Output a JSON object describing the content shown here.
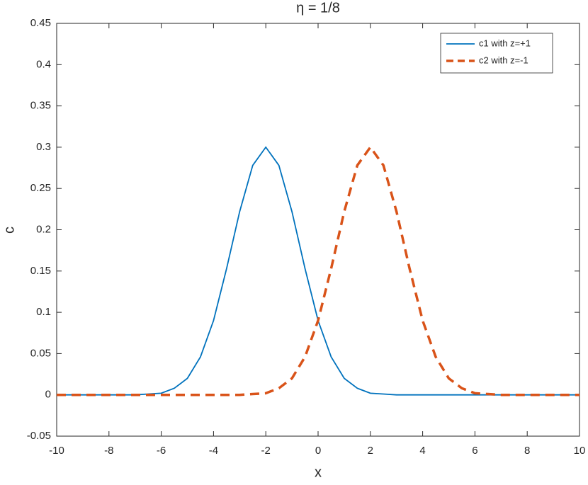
{
  "chart_data": {
    "type": "line",
    "title": "η = 1/8",
    "xlabel": "x",
    "ylabel": "c",
    "x": [
      -10,
      -9.5,
      -9,
      -8.5,
      -8,
      -7.5,
      -7,
      -6.5,
      -6,
      -5.5,
      -5,
      -4.5,
      -4,
      -3.5,
      -3,
      -2.5,
      -2,
      -1.5,
      -1,
      -0.5,
      0,
      0.5,
      1,
      1.5,
      2,
      2.5,
      3,
      3.5,
      4,
      4.5,
      5,
      5.5,
      6,
      6.5,
      7,
      7.5,
      8,
      8.5,
      9,
      9.5,
      10
    ],
    "series": [
      {
        "name": "c1 with z=+1",
        "color": "#0072bd",
        "dash": false,
        "values": [
          0,
          0,
          0,
          0,
          0,
          0,
          0,
          0.001,
          0.002,
          0.008,
          0.02,
          0.046,
          0.09,
          0.153,
          0.222,
          0.278,
          0.3,
          0.278,
          0.222,
          0.153,
          0.09,
          0.046,
          0.02,
          0.008,
          0.002,
          0.001,
          0,
          0,
          0,
          0,
          0,
          0,
          0,
          0,
          0,
          0,
          0,
          0,
          0,
          0,
          0
        ]
      },
      {
        "name": "c2 with z=-1",
        "color": "#d95319",
        "dash": true,
        "values": [
          0,
          0,
          0,
          0,
          0,
          0,
          0,
          0,
          0,
          0,
          0,
          0,
          0,
          0,
          0,
          0.001,
          0.002,
          0.008,
          0.02,
          0.046,
          0.09,
          0.153,
          0.222,
          0.278,
          0.3,
          0.278,
          0.222,
          0.153,
          0.09,
          0.046,
          0.02,
          0.008,
          0.002,
          0.001,
          0,
          0,
          0,
          0,
          0,
          0,
          0
        ]
      }
    ],
    "xlim": [
      -10,
      10
    ],
    "xticks": [
      -10,
      -8,
      -6,
      -4,
      -2,
      0,
      2,
      4,
      6,
      8,
      10
    ],
    "ylim": [
      -0.05,
      0.45
    ],
    "yticks": [
      -0.05,
      0,
      0.05,
      0.1,
      0.15,
      0.2,
      0.25,
      0.3,
      0.35,
      0.4,
      0.45
    ],
    "legend": "top-right"
  }
}
